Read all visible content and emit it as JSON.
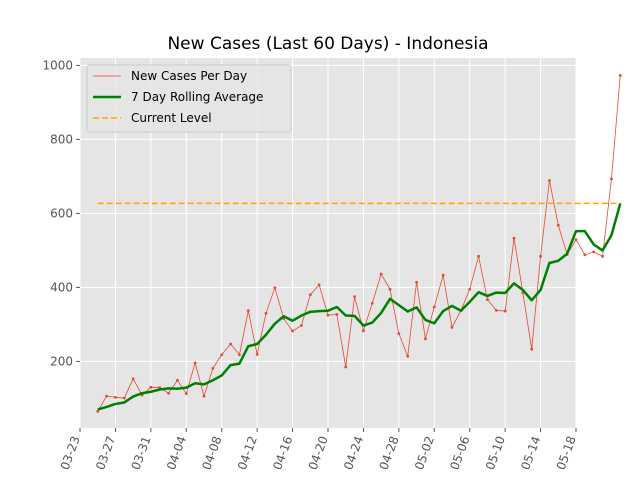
{
  "chart_data": {
    "type": "line",
    "title": "New Cases (Last 60 Days) - Indonesia",
    "xlabel": "",
    "ylabel": "",
    "x_start": "2020-03-25",
    "xlim": [
      "2020-03-23",
      "2020-05-18"
    ],
    "ylim": [
      20,
      1020
    ],
    "x_ticks": [
      "03-23",
      "03-27",
      "03-31",
      "04-04",
      "04-08",
      "04-12",
      "04-16",
      "04-20",
      "04-24",
      "04-28",
      "05-02",
      "05-06",
      "05-10",
      "05-14",
      "05-18"
    ],
    "y_ticks": [
      200,
      400,
      600,
      800,
      1000
    ],
    "grid": true,
    "legend_position": "top-left",
    "series": [
      {
        "name": "New Cases Per Day",
        "style": "thin line with point markers",
        "color": "#e24a33",
        "values": [
          65,
          106,
          103,
          101,
          153,
          109,
          130,
          129,
          114,
          149,
          113,
          196,
          106,
          181,
          218,
          247,
          218,
          337,
          219,
          330,
          399,
          316,
          282,
          297,
          380,
          407,
          325,
          327,
          185,
          375,
          283,
          357,
          436,
          395,
          275,
          214,
          414,
          261,
          347,
          433,
          292,
          337,
          395,
          484,
          367,
          338,
          336,
          533,
          386,
          233,
          484,
          689,
          568,
          489,
          529,
          488,
          496,
          484,
          693,
          973
        ]
      },
      {
        "name": "7 Day Rolling Average",
        "style": "thick line",
        "color": "#008000",
        "values": [
          70,
          77,
          85,
          89,
          105,
          114,
          118,
          124,
          127,
          126,
          129,
          141,
          138,
          149,
          162,
          190,
          194,
          241,
          247,
          272,
          302,
          322,
          310,
          324,
          334,
          336,
          337,
          347,
          324,
          323,
          297,
          305,
          331,
          369,
          352,
          335,
          346,
          312,
          303,
          336,
          350,
          337,
          361,
          387,
          377,
          386,
          385,
          411,
          393,
          365,
          393,
          466,
          472,
          491,
          552,
          552,
          516,
          500,
          541,
          627
        ]
      },
      {
        "name": "Current Level",
        "style": "dashed horizontal line",
        "color": "#ffa500",
        "values": [
          627,
          627
        ]
      }
    ]
  }
}
